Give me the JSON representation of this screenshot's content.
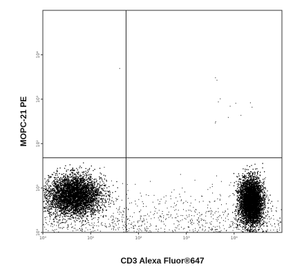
{
  "chart_data": {
    "type": "scatter",
    "title": "",
    "xlabel": "CD3 Alexa Fluor®647",
    "ylabel": "MOPC-21 PE",
    "x_scale": "log",
    "y_scale": "log",
    "xlim": [
      1,
      100000
    ],
    "ylim": [
      1,
      100000
    ],
    "x_ticks": [
      "10⁰",
      "10¹",
      "10²",
      "10³",
      "10⁴"
    ],
    "y_ticks": [
      "10⁰",
      "10¹",
      "10²",
      "10³",
      "10⁴"
    ],
    "quadrant_gate": {
      "x": 55,
      "y": 48
    },
    "grid": false,
    "point_color": "#000000",
    "populations": [
      {
        "center_x": 4.5,
        "center_y": 7,
        "spread_x_decades": 0.28,
        "spread_y_decades": 0.22,
        "count": 4200
      },
      {
        "center_x": 22000,
        "center_y": 5,
        "spread_x_decades": 0.12,
        "spread_y_decades": 0.26,
        "count": 4200
      }
    ],
    "background_events": 900
  }
}
